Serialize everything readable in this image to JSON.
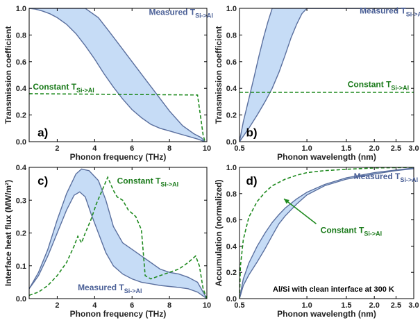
{
  "colors": {
    "band_fill": "#c6dcf6",
    "band_stroke": "#5a6f9e",
    "measured_text": "#4a5f96",
    "constant_line": "#1f8a1f",
    "constant_text": "#1a7a1a",
    "axis": "#000000"
  },
  "chart_data": [
    {
      "id": "a",
      "type": "area",
      "panel_label": "a)",
      "xlabel": "Phonon frequency (THz)",
      "ylabel": "Transmission coefficient",
      "xscale": "linear",
      "xlim": [
        0.5,
        10
      ],
      "ylim": [
        0,
        1
      ],
      "xticks": [
        {
          "v": 2,
          "label": "2"
        },
        {
          "v": 4,
          "label": "4"
        },
        {
          "v": 6,
          "label": "6"
        },
        {
          "v": 8,
          "label": "8"
        },
        {
          "v": 10,
          "label": "10"
        }
      ],
      "yticks": [
        {
          "v": 0,
          "label": "0.0"
        },
        {
          "v": 0.2,
          "label": "0.2"
        },
        {
          "v": 0.4,
          "label": "0.4"
        },
        {
          "v": 0.6,
          "label": "0.6"
        },
        {
          "v": 0.8,
          "label": "0.8"
        },
        {
          "v": 1.0,
          "label": "1.0"
        }
      ],
      "band": {
        "name": "Measured T",
        "subscript": "Si->Al",
        "upper": [
          [
            0.5,
            1.0
          ],
          [
            1.5,
            1.0
          ],
          [
            2.5,
            1.0
          ],
          [
            3.5,
            1.0
          ],
          [
            4.2,
            0.93
          ],
          [
            4.7,
            0.84
          ],
          [
            5.3,
            0.73
          ],
          [
            6.0,
            0.6
          ],
          [
            6.7,
            0.47
          ],
          [
            7.3,
            0.36
          ],
          [
            8.0,
            0.23
          ],
          [
            8.7,
            0.12
          ],
          [
            9.3,
            0.06
          ],
          [
            9.7,
            0.03
          ],
          [
            9.9,
            0.0
          ]
        ],
        "lower": [
          [
            0.5,
            1.0
          ],
          [
            0.8,
            0.995
          ],
          [
            1.2,
            0.98
          ],
          [
            1.6,
            0.96
          ],
          [
            2.0,
            0.93
          ],
          [
            2.5,
            0.88
          ],
          [
            3.0,
            0.81
          ],
          [
            3.5,
            0.72
          ],
          [
            4.0,
            0.62
          ],
          [
            4.5,
            0.51
          ],
          [
            5.0,
            0.41
          ],
          [
            5.5,
            0.32
          ],
          [
            6.0,
            0.24
          ],
          [
            6.5,
            0.18
          ],
          [
            7.0,
            0.13
          ],
          [
            7.5,
            0.1
          ],
          [
            8.0,
            0.08
          ],
          [
            8.5,
            0.06
          ],
          [
            9.0,
            0.04
          ],
          [
            9.5,
            0.02
          ],
          [
            9.9,
            0.0
          ]
        ]
      },
      "dashed": {
        "name": "Constant T",
        "subscript": "Si->Al",
        "points": [
          [
            0.5,
            0.36
          ],
          [
            9.5,
            0.35
          ],
          [
            9.65,
            0.2
          ],
          [
            9.8,
            0.05
          ],
          [
            9.9,
            0.0
          ]
        ]
      },
      "measured_label_at": [
        6.9,
        0.95
      ],
      "constant_label_at": [
        0.7,
        0.39
      ],
      "panel_label_at": [
        0.95,
        0.07
      ]
    },
    {
      "id": "b",
      "type": "area",
      "panel_label": "b)",
      "xlabel": "Phonon wavelength (nm)",
      "ylabel": "Transmission coefficient",
      "xscale": "log",
      "xlim": [
        0.5,
        3.0
      ],
      "ylim": [
        0,
        1
      ],
      "xticks": [
        {
          "v": 0.5,
          "label": "0.5"
        },
        {
          "v": 1.0,
          "label": "1.0"
        },
        {
          "v": 1.5,
          "label": "1.5"
        },
        {
          "v": 2.0,
          "label": "2.0"
        },
        {
          "v": 2.5,
          "label": "2.5"
        },
        {
          "v": 3.0,
          "label": "3.0"
        }
      ],
      "yticks": [
        {
          "v": 0,
          "label": "0.0"
        },
        {
          "v": 0.2,
          "label": "0.2"
        },
        {
          "v": 0.4,
          "label": "0.4"
        },
        {
          "v": 0.6,
          "label": "0.6"
        },
        {
          "v": 0.8,
          "label": "0.8"
        },
        {
          "v": 1.0,
          "label": "1.0"
        }
      ],
      "band": {
        "name": "Measured T",
        "subscript": "Si->Al",
        "upper": [
          [
            0.5,
            0.0
          ],
          [
            0.52,
            0.15
          ],
          [
            0.55,
            0.32
          ],
          [
            0.58,
            0.48
          ],
          [
            0.61,
            0.64
          ],
          [
            0.64,
            0.78
          ],
          [
            0.67,
            0.9
          ],
          [
            0.7,
            1.0
          ],
          [
            1.5,
            1.0
          ],
          [
            3.0,
            1.0
          ]
        ],
        "lower": [
          [
            0.5,
            0.0
          ],
          [
            0.55,
            0.1
          ],
          [
            0.6,
            0.2
          ],
          [
            0.65,
            0.3
          ],
          [
            0.7,
            0.4
          ],
          [
            0.75,
            0.52
          ],
          [
            0.8,
            0.65
          ],
          [
            0.85,
            0.78
          ],
          [
            0.9,
            0.88
          ],
          [
            0.95,
            0.96
          ],
          [
            1.0,
            1.0
          ],
          [
            3.0,
            1.0
          ]
        ]
      },
      "dashed": {
        "name": "Constant T",
        "subscript": "Si->Al",
        "points": [
          [
            0.5,
            0.37
          ],
          [
            3.0,
            0.37
          ]
        ]
      },
      "measured_label_at": [
        1.72,
        0.96
      ],
      "constant_label_at": [
        1.52,
        0.41
      ],
      "panel_label_at": [
        0.535,
        0.07
      ]
    },
    {
      "id": "c",
      "type": "area",
      "panel_label": "c)",
      "xlabel": "Phonon frequency (THz)",
      "ylabel": "Interface heat flux (MW/m²)",
      "xscale": "linear",
      "xlim": [
        0.5,
        10
      ],
      "ylim": [
        0,
        0.4
      ],
      "xticks": [
        {
          "v": 2,
          "label": "2"
        },
        {
          "v": 4,
          "label": "4"
        },
        {
          "v": 6,
          "label": "6"
        },
        {
          "v": 8,
          "label": "8"
        },
        {
          "v": 10,
          "label": "10"
        }
      ],
      "yticks": [
        {
          "v": 0,
          "label": "0.0"
        },
        {
          "v": 0.1,
          "label": "0.1"
        },
        {
          "v": 0.2,
          "label": "0.2"
        },
        {
          "v": 0.3,
          "label": "0.3"
        },
        {
          "v": 0.4,
          "label": "0.4"
        }
      ],
      "band": {
        "name": "Measured T",
        "subscript": "Si->Al",
        "upper": [
          [
            0.5,
            0.03
          ],
          [
            1.0,
            0.08
          ],
          [
            1.5,
            0.15
          ],
          [
            2.0,
            0.24
          ],
          [
            2.5,
            0.32
          ],
          [
            3.0,
            0.38
          ],
          [
            3.3,
            0.395
          ],
          [
            3.7,
            0.39
          ],
          [
            4.2,
            0.36
          ],
          [
            4.6,
            0.3
          ],
          [
            5.0,
            0.22
          ],
          [
            5.5,
            0.17
          ],
          [
            6.0,
            0.15
          ],
          [
            6.5,
            0.13
          ],
          [
            7.0,
            0.11
          ],
          [
            7.5,
            0.09
          ],
          [
            8.0,
            0.08
          ],
          [
            8.5,
            0.075
          ],
          [
            9.0,
            0.065
          ],
          [
            9.5,
            0.05
          ],
          [
            9.8,
            0.02
          ],
          [
            10.0,
            0.0
          ]
        ],
        "lower": [
          [
            0.5,
            0.03
          ],
          [
            1.0,
            0.07
          ],
          [
            1.5,
            0.13
          ],
          [
            2.0,
            0.2
          ],
          [
            2.5,
            0.27
          ],
          [
            2.9,
            0.315
          ],
          [
            3.2,
            0.325
          ],
          [
            3.5,
            0.31
          ],
          [
            3.8,
            0.26
          ],
          [
            4.2,
            0.2
          ],
          [
            4.6,
            0.14
          ],
          [
            5.0,
            0.1
          ],
          [
            5.5,
            0.075
          ],
          [
            6.0,
            0.06
          ],
          [
            6.5,
            0.05
          ],
          [
            7.0,
            0.045
          ],
          [
            7.5,
            0.04
          ],
          [
            8.0,
            0.037
          ],
          [
            8.5,
            0.034
          ],
          [
            9.0,
            0.03
          ],
          [
            9.5,
            0.02
          ],
          [
            10.0,
            0.0
          ]
        ]
      },
      "dashed": {
        "name": "Constant T",
        "subscript": "Si->Al",
        "points": [
          [
            0.5,
            0.01
          ],
          [
            1.0,
            0.02
          ],
          [
            1.5,
            0.04
          ],
          [
            2.0,
            0.07
          ],
          [
            2.5,
            0.11
          ],
          [
            2.9,
            0.16
          ],
          [
            3.1,
            0.19
          ],
          [
            3.3,
            0.17
          ],
          [
            3.5,
            0.2
          ],
          [
            3.8,
            0.24
          ],
          [
            4.1,
            0.29
          ],
          [
            4.4,
            0.33
          ],
          [
            4.7,
            0.37
          ],
          [
            5.0,
            0.33
          ],
          [
            5.2,
            0.31
          ],
          [
            5.5,
            0.3
          ],
          [
            5.8,
            0.27
          ],
          [
            6.0,
            0.26
          ],
          [
            6.2,
            0.25
          ],
          [
            6.5,
            0.21
          ],
          [
            6.7,
            0.07
          ],
          [
            7.0,
            0.06
          ],
          [
            7.5,
            0.07
          ],
          [
            8.0,
            0.08
          ],
          [
            8.5,
            0.09
          ],
          [
            9.0,
            0.11
          ],
          [
            9.4,
            0.13
          ],
          [
            9.6,
            0.1
          ],
          [
            9.8,
            0.03
          ],
          [
            10.0,
            0.0
          ]
        ]
      },
      "measured_label_at": [
        3.1,
        0.025
      ],
      "constant_label_at": [
        5.2,
        0.35
      ],
      "panel_label_at": [
        0.95,
        0.36
      ]
    },
    {
      "id": "d",
      "type": "area",
      "panel_label": "d)",
      "xlabel": "Phonon wavelength (nm)",
      "ylabel": "Accumulation (normalized)",
      "xscale": "log",
      "xlim": [
        0.5,
        3.0
      ],
      "ylim": [
        0,
        1
      ],
      "xticks": [
        {
          "v": 0.5,
          "label": "0.5"
        },
        {
          "v": 1.0,
          "label": "1.0"
        },
        {
          "v": 1.5,
          "label": "1.5"
        },
        {
          "v": 2.0,
          "label": "2.0"
        },
        {
          "v": 2.5,
          "label": "2.5"
        },
        {
          "v": 3.0,
          "label": "3.0"
        }
      ],
      "yticks": [
        {
          "v": 0,
          "label": "0.0"
        },
        {
          "v": 0.2,
          "label": "0.2"
        },
        {
          "v": 0.4,
          "label": "0.4"
        },
        {
          "v": 0.6,
          "label": "0.6"
        },
        {
          "v": 0.8,
          "label": "0.8"
        },
        {
          "v": 1.0,
          "label": "1.0"
        }
      ],
      "band": {
        "name": "Measured T",
        "subscript": "Si->Al",
        "upper": [
          [
            0.5,
            0.0
          ],
          [
            0.52,
            0.15
          ],
          [
            0.55,
            0.27
          ],
          [
            0.6,
            0.4
          ],
          [
            0.65,
            0.5
          ],
          [
            0.7,
            0.58
          ],
          [
            0.75,
            0.64
          ],
          [
            0.8,
            0.69
          ],
          [
            0.9,
            0.76
          ],
          [
            1.0,
            0.81
          ],
          [
            1.2,
            0.87
          ],
          [
            1.5,
            0.92
          ],
          [
            2.0,
            0.96
          ],
          [
            2.5,
            0.98
          ],
          [
            3.0,
            0.995
          ]
        ],
        "lower": [
          [
            0.5,
            0.0
          ],
          [
            0.52,
            0.1
          ],
          [
            0.55,
            0.18
          ],
          [
            0.6,
            0.28
          ],
          [
            0.65,
            0.38
          ],
          [
            0.7,
            0.48
          ],
          [
            0.75,
            0.57
          ],
          [
            0.8,
            0.63
          ],
          [
            0.9,
            0.72
          ],
          [
            1.0,
            0.79
          ],
          [
            1.2,
            0.86
          ],
          [
            1.5,
            0.91
          ],
          [
            2.0,
            0.95
          ],
          [
            2.5,
            0.975
          ],
          [
            3.0,
            0.99
          ]
        ]
      },
      "dashed": {
        "name": "Constant T",
        "subscript": "Si->Al",
        "points": [
          [
            0.5,
            0.0
          ],
          [
            0.505,
            0.25
          ],
          [
            0.52,
            0.45
          ],
          [
            0.55,
            0.62
          ],
          [
            0.6,
            0.74
          ],
          [
            0.65,
            0.81
          ],
          [
            0.7,
            0.86
          ],
          [
            0.8,
            0.91
          ],
          [
            0.9,
            0.94
          ],
          [
            1.0,
            0.96
          ],
          [
            1.2,
            0.975
          ],
          [
            1.5,
            0.985
          ],
          [
            2.0,
            0.995
          ],
          [
            3.0,
            1.0
          ]
        ]
      },
      "arrow": {
        "from": [
          1.1,
          0.57
        ],
        "to": [
          0.79,
          0.76
        ]
      },
      "note": "Al/Si with clean interface at 300 K",
      "measured_label_at": [
        1.62,
        0.91
      ],
      "constant_label_at": [
        1.15,
        0.5
      ],
      "panel_label_at": [
        0.535,
        0.9
      ]
    }
  ]
}
